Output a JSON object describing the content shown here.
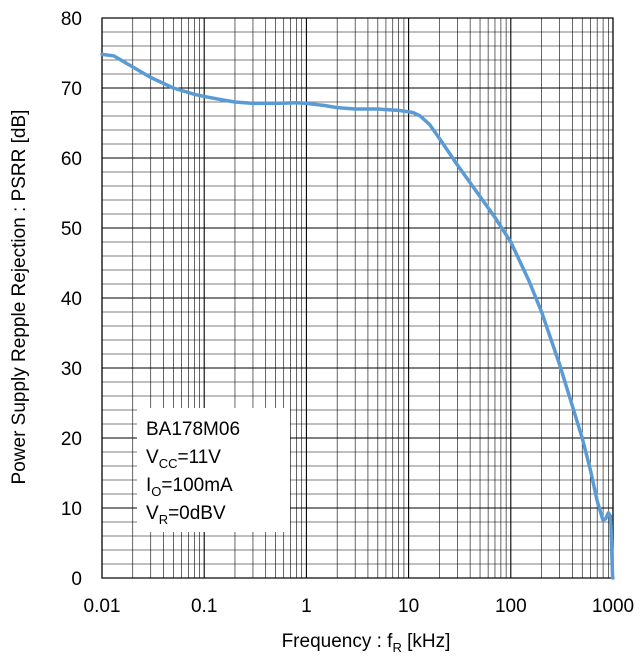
{
  "chart_data": {
    "type": "line",
    "xscale": "log",
    "xlim": [
      0.01,
      1000
    ],
    "ylim": [
      0,
      80
    ],
    "xticks": [
      0.01,
      0.1,
      1,
      10,
      100,
      1000
    ],
    "xtick_labels": [
      "0.01",
      "0.1",
      "1",
      "10",
      "100",
      "1000"
    ],
    "yticks": [
      0,
      10,
      20,
      30,
      40,
      50,
      60,
      70,
      80
    ],
    "ytick_labels": [
      "0",
      "10",
      "20",
      "30",
      "40",
      "50",
      "60",
      "70",
      "80"
    ],
    "grid": true,
    "xlabel": {
      "main": "Frequency : f",
      "sub": "R",
      "unit": " [kHz]"
    },
    "ylabel": "Power Supply Repple Rejection : PSRR [dB]",
    "series_color": "#5b9bd5",
    "annotation": {
      "device": "BA178M06",
      "vcc": {
        "main": "V",
        "sub": "CC",
        "rest": "=11V"
      },
      "io": {
        "main": "I",
        "sub": "O",
        "rest": "=100mA"
      },
      "vr": {
        "main": "V",
        "sub": "R",
        "rest": "=0dBV"
      }
    },
    "series": [
      {
        "x": [
          0.01,
          0.013,
          0.02,
          0.03,
          0.05,
          0.08,
          0.1,
          0.15,
          0.2,
          0.3,
          0.5,
          0.8,
          1,
          1.5,
          2,
          3,
          5,
          8,
          10,
          11,
          13,
          16,
          20,
          30,
          50,
          70,
          100,
          150,
          200,
          300,
          500,
          600,
          700,
          800,
          850,
          900,
          950,
          990,
          1000
        ],
        "y": [
          74.8,
          74.6,
          73.0,
          71.5,
          70.0,
          69.1,
          68.8,
          68.3,
          68.0,
          67.8,
          67.8,
          67.9,
          67.8,
          67.5,
          67.2,
          67.0,
          67.0,
          66.8,
          66.6,
          66.5,
          66.0,
          64.8,
          62.8,
          59.0,
          54.5,
          51.5,
          48.0,
          42.5,
          38.0,
          30.5,
          20.0,
          15.5,
          11.0,
          8.2,
          8.5,
          9.3,
          8.8,
          0.0,
          0.0
        ]
      }
    ]
  }
}
